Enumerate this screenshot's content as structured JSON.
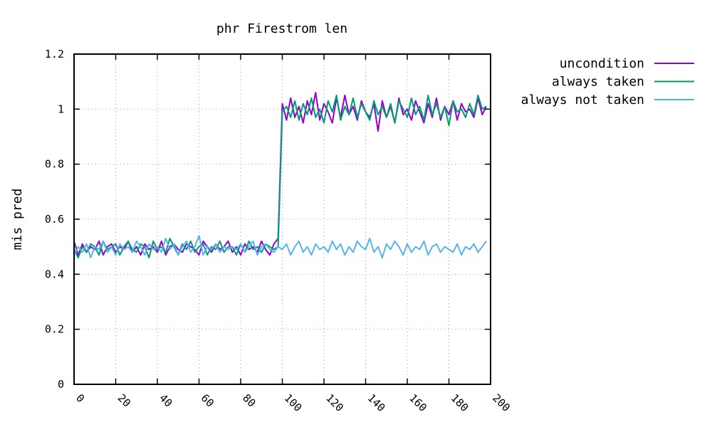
{
  "chart_data": {
    "type": "line",
    "title": "phr Firestrom len",
    "xlabel": "",
    "ylabel": "mis pred",
    "xlim": [
      0,
      200
    ],
    "ylim": [
      0,
      1.2
    ],
    "x_ticks": [
      "0",
      "20",
      "40",
      "60",
      "80",
      "100",
      "120",
      "140",
      "160",
      "180",
      "200"
    ],
    "y_ticks": [
      "0",
      "0.2",
      "0.4",
      "0.6",
      "0.8",
      "1",
      "1.2"
    ],
    "grid": true,
    "legend_position": "outside-top-right",
    "x_step": 2,
    "series": [
      {
        "name": "uncondition",
        "color": "#9400d3",
        "values": [
          0.52,
          0.47,
          0.51,
          0.48,
          0.5,
          0.49,
          0.52,
          0.47,
          0.5,
          0.51,
          0.48,
          0.5,
          0.49,
          0.52,
          0.48,
          0.5,
          0.47,
          0.51,
          0.49,
          0.5,
          0.48,
          0.52,
          0.47,
          0.5,
          0.51,
          0.49,
          0.48,
          0.51,
          0.5,
          0.49,
          0.47,
          0.52,
          0.5,
          0.48,
          0.51,
          0.49,
          0.5,
          0.52,
          0.48,
          0.5,
          0.47,
          0.51,
          0.49,
          0.5,
          0.48,
          0.52,
          0.49,
          0.47,
          0.51,
          0.53,
          1.02,
          0.96,
          1.04,
          0.97,
          1.01,
          0.95,
          1.03,
          0.98,
          1.06,
          0.96,
          1.02,
          0.99,
          0.95,
          1.04,
          0.97,
          1.05,
          0.98,
          1.01,
          0.96,
          1.03,
          0.99,
          0.97,
          1.02,
          0.92,
          1.03,
          0.97,
          1.01,
          0.95,
          1.04,
          0.98,
          1.0,
          0.96,
          1.03,
          0.99,
          0.95,
          1.02,
          0.97,
          1.04,
          0.96,
          1.01,
          0.98,
          1.03,
          0.96,
          1.02,
          0.99,
          1.0,
          0.97,
          1.04,
          0.98,
          1.01
        ]
      },
      {
        "name": "always taken",
        "color": "#009e73",
        "values": [
          0.49,
          0.46,
          0.5,
          0.48,
          0.51,
          0.5,
          0.47,
          0.52,
          0.49,
          0.5,
          0.51,
          0.47,
          0.5,
          0.52,
          0.49,
          0.48,
          0.51,
          0.5,
          0.46,
          0.52,
          0.49,
          0.5,
          0.48,
          0.53,
          0.5,
          0.47,
          0.51,
          0.49,
          0.52,
          0.48,
          0.5,
          0.51,
          0.47,
          0.5,
          0.49,
          0.52,
          0.48,
          0.5,
          0.5,
          0.47,
          0.51,
          0.48,
          0.52,
          0.49,
          0.5,
          0.48,
          0.51,
          0.5,
          0.49,
          0.5,
          0.99,
          1.01,
          0.97,
          1.03,
          0.96,
          1.02,
          0.98,
          1.04,
          0.97,
          1.0,
          0.95,
          1.03,
          0.99,
          1.05,
          0.96,
          1.01,
          0.98,
          1.04,
          0.97,
          1.02,
          0.99,
          0.96,
          1.03,
          0.98,
          1.01,
          0.97,
          1.02,
          0.95,
          1.03,
          1.0,
          0.97,
          1.04,
          0.98,
          1.01,
          0.96,
          1.05,
          0.98,
          1.02,
          0.97,
          1.01,
          0.94,
          1.03,
          0.99,
          1.0,
          0.97,
          1.02,
          0.98,
          1.05,
          1.0,
          1.01
        ]
      },
      {
        "name": "always not taken",
        "color": "#56b4e9",
        "values": [
          0.47,
          0.5,
          0.48,
          0.51,
          0.46,
          0.5,
          0.49,
          0.52,
          0.48,
          0.5,
          0.47,
          0.51,
          0.49,
          0.5,
          0.48,
          0.52,
          0.5,
          0.47,
          0.51,
          0.49,
          0.5,
          0.48,
          0.53,
          0.49,
          0.51,
          0.47,
          0.5,
          0.52,
          0.48,
          0.5,
          0.54,
          0.47,
          0.5,
          0.49,
          0.51,
          0.48,
          0.5,
          0.49,
          0.5,
          0.49,
          0.51,
          0.48,
          0.5,
          0.52,
          0.47,
          0.5,
          0.51,
          0.49,
          0.48,
          0.5,
          0.49,
          0.51,
          0.47,
          0.5,
          0.52,
          0.48,
          0.5,
          0.47,
          0.51,
          0.49,
          0.5,
          0.48,
          0.52,
          0.49,
          0.51,
          0.47,
          0.5,
          0.48,
          0.52,
          0.5,
          0.49,
          0.53,
          0.48,
          0.5,
          0.46,
          0.51,
          0.49,
          0.52,
          0.5,
          0.47,
          0.51,
          0.48,
          0.5,
          0.49,
          0.52,
          0.47,
          0.5,
          0.51,
          0.48,
          0.5,
          0.49,
          0.48,
          0.51,
          0.47,
          0.5,
          0.49,
          0.51,
          0.48,
          0.5,
          0.52
        ]
      }
    ]
  }
}
